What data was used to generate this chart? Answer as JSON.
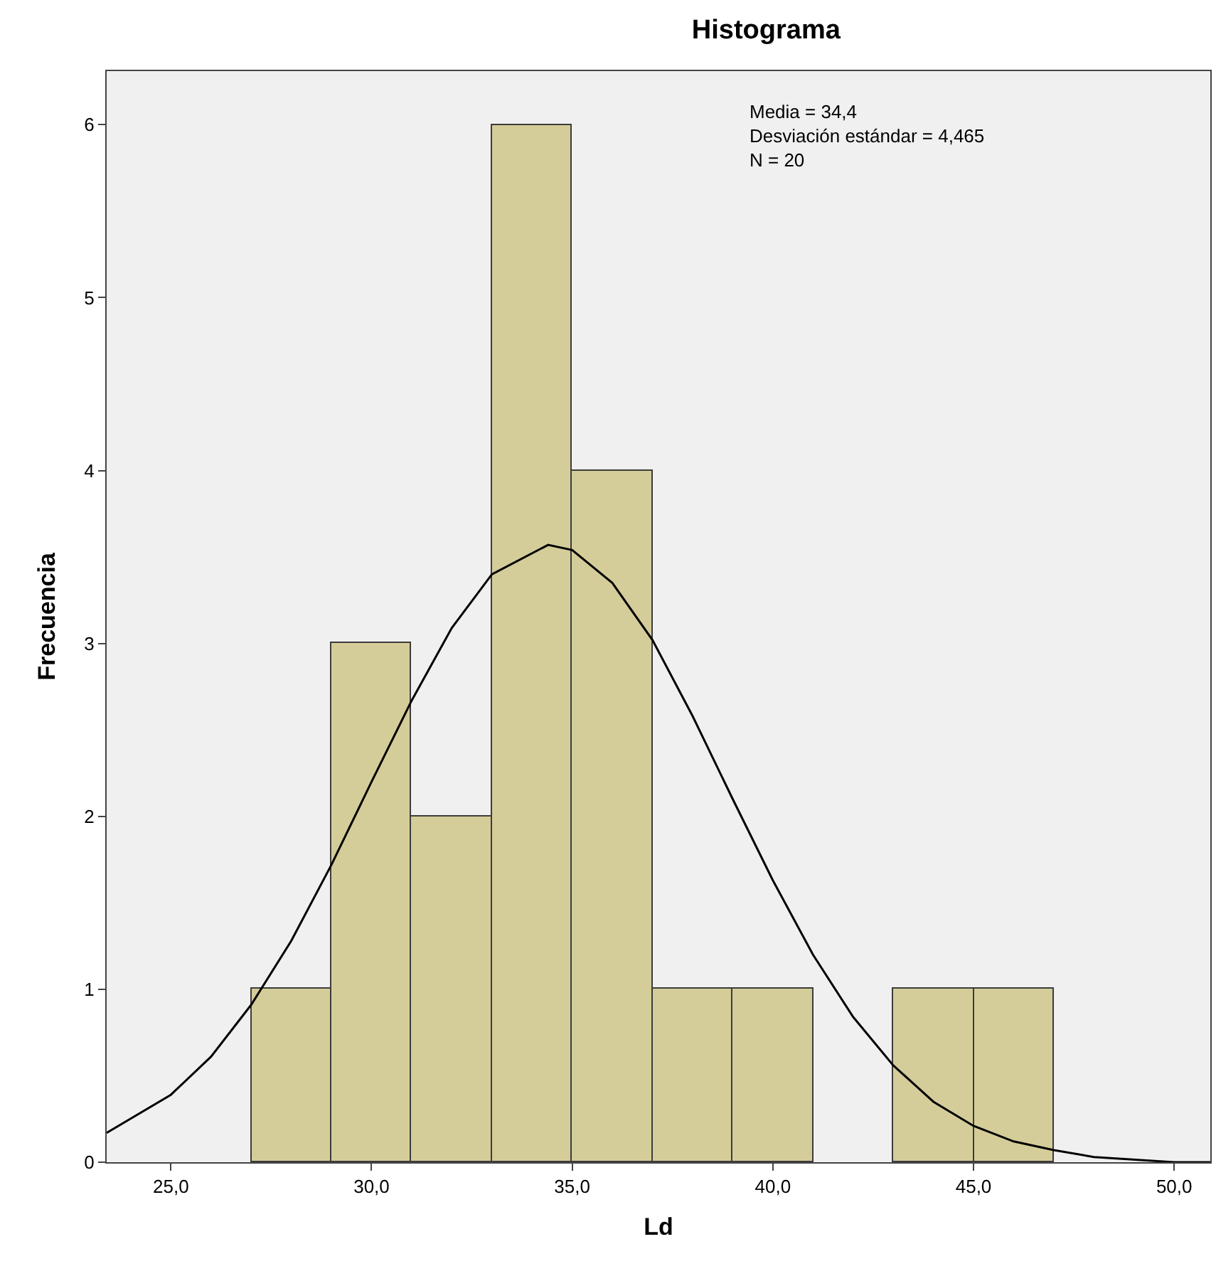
{
  "chart_data": {
    "type": "histogram",
    "title": "Histograma",
    "xlabel": "Ld",
    "ylabel": "Frecuencia",
    "bins": [
      27,
      29,
      31,
      33,
      35,
      37,
      39,
      41,
      43,
      45,
      47
    ],
    "values": [
      1,
      3,
      2,
      6,
      4,
      1,
      1,
      0,
      1,
      1
    ],
    "color": "#d5cd99",
    "series": [
      {
        "type": "line",
        "color": "#000000",
        "x": [
          23.4,
          25,
          26,
          27,
          28,
          29,
          30,
          31,
          32,
          33,
          34.4,
          35,
          36,
          37,
          38,
          39,
          40,
          41,
          42,
          43,
          44,
          45,
          46,
          47,
          48,
          50,
          50.9
        ],
        "values": [
          0.17,
          0.39,
          0.61,
          0.91,
          1.28,
          1.72,
          2.2,
          2.67,
          3.09,
          3.4,
          3.57,
          3.54,
          3.35,
          3.02,
          2.58,
          2.1,
          1.63,
          1.2,
          0.84,
          0.56,
          0.35,
          0.21,
          0.12,
          0.07,
          0.03,
          0.0,
          0.0
        ]
      }
    ],
    "annotations": [
      "Media = 34,4\nDesviación estándar = 4,465\nN = 20"
    ],
    "xlim": [
      23.4,
      50.9
    ],
    "ylim": [
      0,
      6.31
    ],
    "xticks": [
      {
        "value": 25,
        "label": "25,0"
      },
      {
        "value": 30,
        "label": "30,0"
      },
      {
        "value": 35,
        "label": "35,0"
      },
      {
        "value": 40,
        "label": "40,0"
      },
      {
        "value": 45,
        "label": "45,0"
      },
      {
        "value": 50,
        "label": "50,0"
      }
    ],
    "yticks": [
      0,
      1,
      2,
      3,
      4,
      5,
      6
    ],
    "grid": false,
    "marker": "none",
    "line_style": "solid"
  }
}
